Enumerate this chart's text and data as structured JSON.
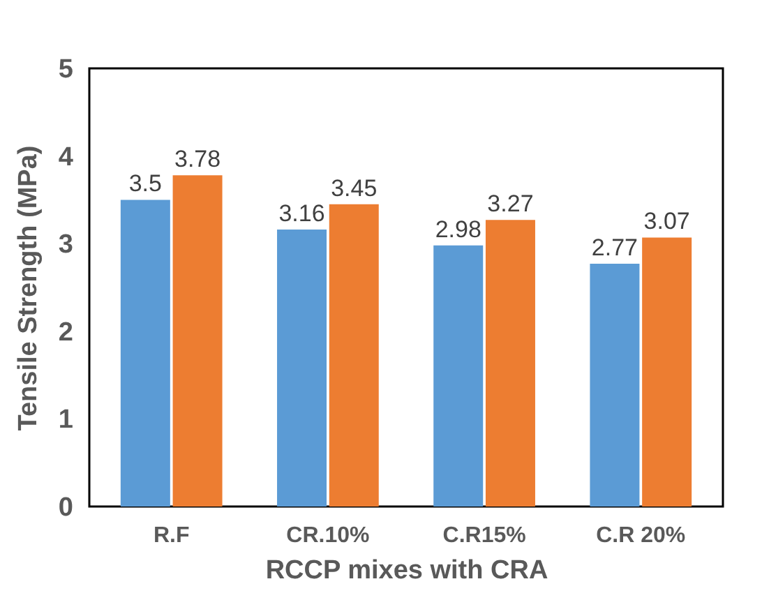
{
  "chart_data": {
    "type": "bar",
    "xlabel": "RCCP mixes with CRA",
    "ylabel": "Tensile Strength (MPa)",
    "categories": [
      "R.F",
      "CR.10%",
      "C.R15%",
      "C.R 20%"
    ],
    "series": [
      {
        "color": "#5b9bd5",
        "values": [
          3.5,
          3.16,
          2.98,
          2.77
        ]
      },
      {
        "color": "#ed7d31",
        "values": [
          3.78,
          3.45,
          3.27,
          3.07
        ]
      }
    ],
    "ylim": [
      0,
      5
    ],
    "yticks": [
      0,
      1,
      2,
      3,
      4,
      5
    ],
    "data_labels": true,
    "legend": false
  }
}
